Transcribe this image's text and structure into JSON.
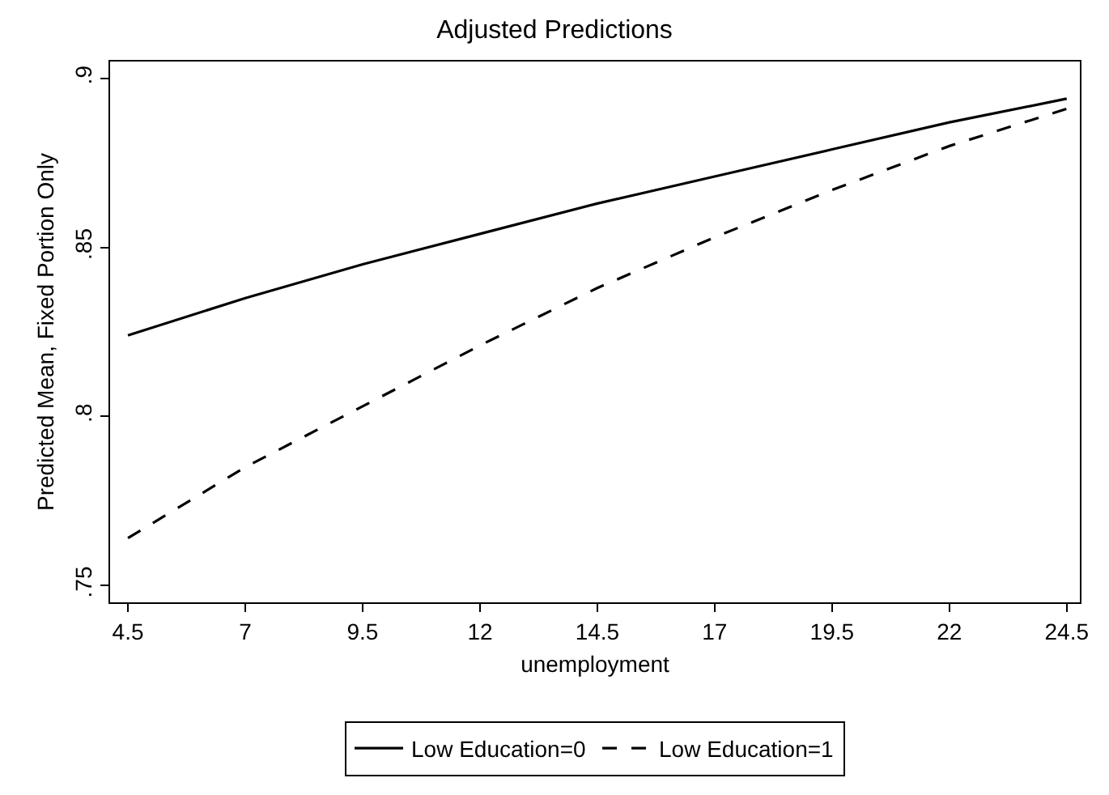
{
  "chart_data": {
    "type": "line",
    "title": "Adjusted Predictions",
    "xlabel": "unemployment",
    "ylabel": "Predicted Mean, Fixed Portion Only",
    "x": [
      4.5,
      7,
      9.5,
      12,
      14.5,
      17,
      19.5,
      22,
      24.5
    ],
    "series": [
      {
        "name": "Low Education=0",
        "color": "#000000",
        "line_style": "solid",
        "values": [
          0.824,
          0.835,
          0.845,
          0.854,
          0.863,
          0.871,
          0.879,
          0.887,
          0.894
        ]
      },
      {
        "name": "Low Education=1",
        "color": "#000000",
        "line_style": "dashed",
        "values": [
          0.764,
          0.785,
          0.803,
          0.821,
          0.838,
          0.853,
          0.867,
          0.88,
          0.891
        ]
      }
    ],
    "xlim": [
      4.12,
      24.78
    ],
    "ylim": [
      0.745,
      0.905
    ],
    "xticks": [
      4.5,
      7,
      9.5,
      12,
      14.5,
      17,
      19.5,
      22,
      24.5
    ],
    "yticks": [
      {
        "value": 0.75,
        "label": ".75"
      },
      {
        "value": 0.8,
        "label": ".8"
      },
      {
        "value": 0.85,
        "label": ".85"
      },
      {
        "value": 0.9,
        "label": ".9"
      }
    ],
    "legend": "bottom",
    "marker": "none"
  }
}
